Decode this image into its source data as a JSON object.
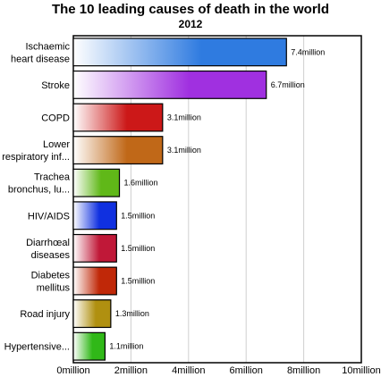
{
  "chart_data": {
    "type": "bar",
    "orientation": "horizontal",
    "title": "The 10 leading causes of death in the world",
    "subtitle": "2012",
    "categories": [
      [
        "Ischaemic",
        "heart disease"
      ],
      [
        "Stroke"
      ],
      [
        "COPD"
      ],
      [
        "Lower",
        "respiratory inf..."
      ],
      [
        "Trachea",
        "bronchus, lu..."
      ],
      [
        "HIV/AIDS"
      ],
      [
        "Diarrhœal",
        "diseases"
      ],
      [
        "Diabetes",
        "mellitus"
      ],
      [
        "Road injury"
      ],
      [
        "Hypertensive..."
      ]
    ],
    "values": [
      7.4,
      6.7,
      3.1,
      3.1,
      1.6,
      1.5,
      1.5,
      1.5,
      1.3,
      1.1
    ],
    "value_labels": [
      "7.4million",
      "6.7million",
      "3.1million",
      "3.1million",
      "1.6million",
      "1.5million",
      "1.5million",
      "1.5million",
      "1.3million",
      "1.1million"
    ],
    "bar_colors": [
      "#2f7be0",
      "#a030e0",
      "#cc1818",
      "#c06818",
      "#60b818",
      "#1030e0",
      "#c01838",
      "#c02808",
      "#b09010",
      "#30b818"
    ],
    "xlim": [
      0,
      10
    ],
    "x_ticks": [
      0,
      2,
      4,
      6,
      8,
      10
    ],
    "x_tick_labels": [
      "0million",
      "2million",
      "4million",
      "6million",
      "8million",
      "10million"
    ],
    "grid": true,
    "legend": "none"
  }
}
